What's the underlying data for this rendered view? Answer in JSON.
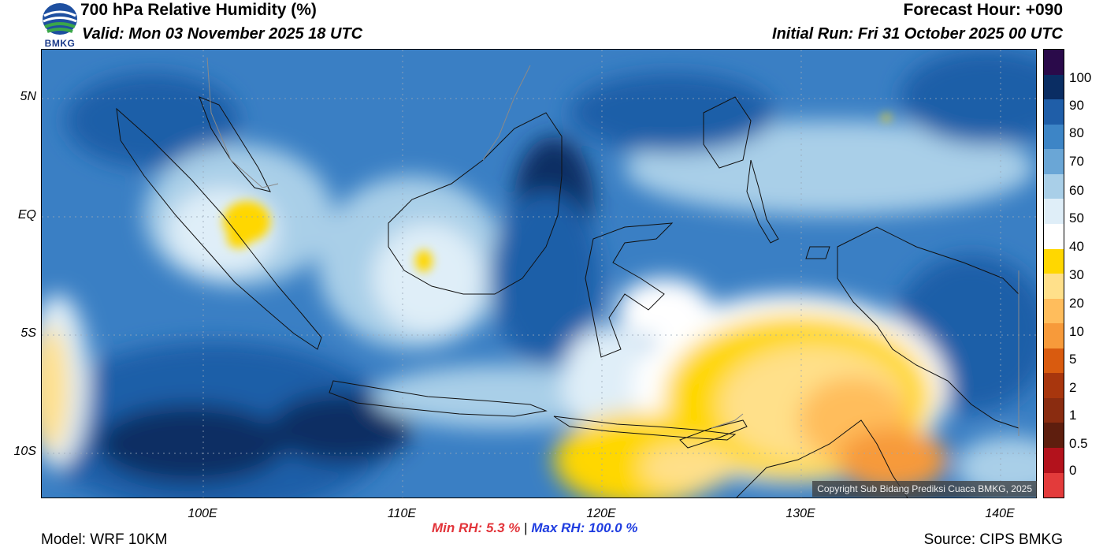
{
  "header": {
    "title": "700 hPa Relative Humidity (%)",
    "valid": "Valid: Mon 03 November 2025 18 UTC",
    "forecast_hour": "Forecast Hour: +090",
    "initial_run": "Initial Run: Fri 31 October 2025 00 UTC"
  },
  "logo": {
    "text": "BMKG"
  },
  "map": {
    "lat_labels": [
      "5N",
      "EQ",
      "5S",
      "10S"
    ],
    "lon_labels": [
      "100E",
      "110E",
      "120E",
      "130E",
      "140E"
    ],
    "copyright": "Copyright Sub Bidang Prediksi Cuaca BMKG, 2025"
  },
  "colorbar": {
    "labels": [
      "100",
      "90",
      "80",
      "70",
      "60",
      "50",
      "40",
      "30",
      "20",
      "10",
      "5",
      "2",
      "1",
      "0.5",
      "0"
    ],
    "colors": [
      "#2a0a4a",
      "#0a2d63",
      "#1f5ea8",
      "#3d85c6",
      "#6aa6d6",
      "#a9cfe8",
      "#dfeef8",
      "#ffffff",
      "#ffd700",
      "#ffe08a",
      "#ffbd5c",
      "#f79a3a",
      "#d95b0f",
      "#a8360d",
      "#8a2c10",
      "#5e1e0e",
      "#b3121c",
      "#e33b3b"
    ]
  },
  "footer": {
    "min_rh_label": "Min RH:",
    "min_rh_value": "5.3 %",
    "separator": "|",
    "max_rh_label": "Max RH:",
    "max_rh_value": "100.0 %",
    "model": "Model: WRF 10KM",
    "source": "Source: CIPS BMKG"
  }
}
